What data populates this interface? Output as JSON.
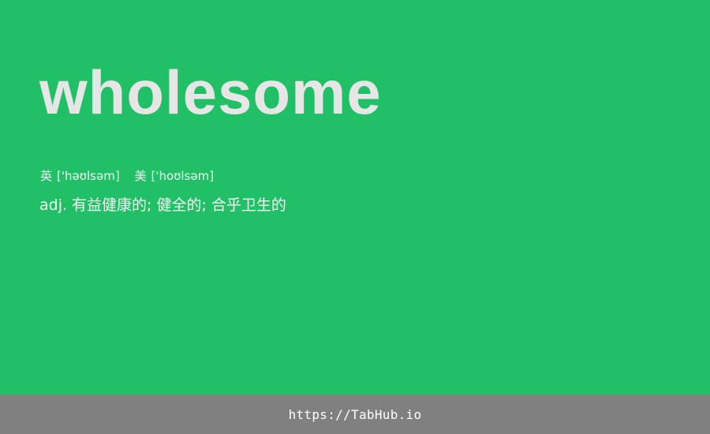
{
  "colors": {
    "background": "#21c066",
    "word": "#e6e6e6",
    "text": "#f1f5f2",
    "footer_bg": "#808080",
    "footer_text": "#ffffff"
  },
  "entry": {
    "word": "wholesome",
    "phonetics": {
      "uk_label": "英",
      "uk_ipa": "['həʊlsəm]",
      "us_label": "美",
      "us_ipa": "['hoʊlsəm]"
    },
    "definition": {
      "pos": "adj.",
      "meaning": "有益健康的; 健全的; 合乎卫生的"
    }
  },
  "footer": {
    "url_text": "https://TabHub.io"
  }
}
